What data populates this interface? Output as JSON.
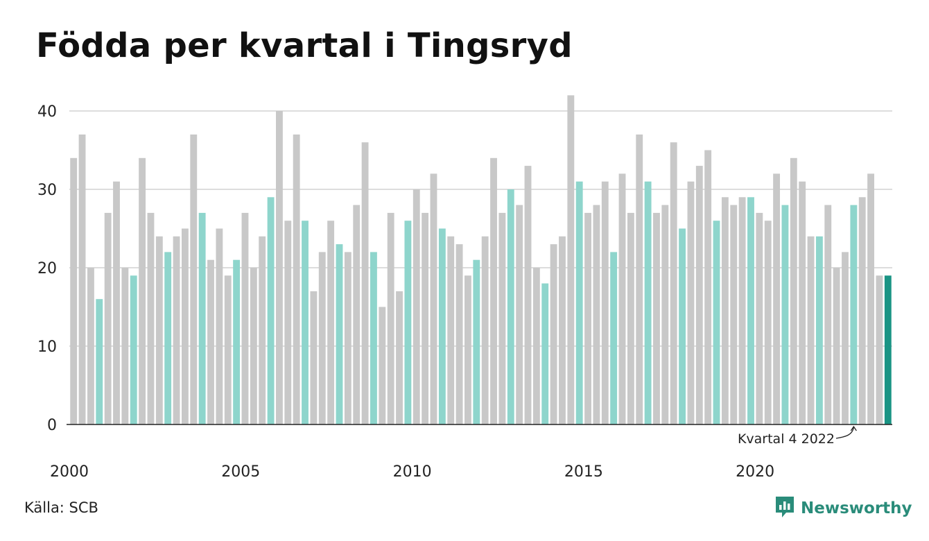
{
  "title": "Födda per kvartal i Tingsryd",
  "source": "Källa: SCB",
  "brand": {
    "name": "Newsworthy",
    "logo_icon": "bar-chart-speech-bubble-icon"
  },
  "colors": {
    "highlight_last": "#1a9484",
    "fourth_quarter": "#8ed5cc",
    "other": "#c8c8c8",
    "grid": "#dddddd",
    "axis": "#222222",
    "brand": "#2a8c7a"
  },
  "annotation": {
    "text": "Kvartal 4 2022",
    "target_index": 91
  },
  "chart_data": {
    "type": "bar",
    "title": "Födda per kvartal i Tingsryd",
    "xlabel": "",
    "ylabel": "",
    "ylim": [
      0,
      43
    ],
    "y_ticks": [
      0,
      10,
      20,
      30,
      40
    ],
    "x_tick_labels": [
      "2000",
      "2005",
      "2010",
      "2015",
      "2020"
    ],
    "grid": true,
    "categories": [
      "2000 Q1",
      "2000 Q2",
      "2000 Q3",
      "2000 Q4",
      "2001 Q1",
      "2001 Q2",
      "2001 Q3",
      "2001 Q4",
      "2002 Q1",
      "2002 Q2",
      "2002 Q3",
      "2002 Q4",
      "2003 Q1",
      "2003 Q2",
      "2003 Q3",
      "2003 Q4",
      "2004 Q1",
      "2004 Q2",
      "2004 Q3",
      "2004 Q4",
      "2005 Q1",
      "2005 Q2",
      "2005 Q3",
      "2005 Q4",
      "2006 Q1",
      "2006 Q2",
      "2006 Q3",
      "2006 Q4",
      "2007 Q1",
      "2007 Q2",
      "2007 Q3",
      "2007 Q4",
      "2008 Q1",
      "2008 Q2",
      "2008 Q3",
      "2008 Q4",
      "2009 Q1",
      "2009 Q2",
      "2009 Q3",
      "2009 Q4",
      "2010 Q1",
      "2010 Q2",
      "2010 Q3",
      "2010 Q4",
      "2011 Q1",
      "2011 Q2",
      "2011 Q3",
      "2011 Q4",
      "2012 Q1",
      "2012 Q2",
      "2012 Q3",
      "2012 Q4",
      "2013 Q1",
      "2013 Q2",
      "2013 Q3",
      "2013 Q4",
      "2014 Q1",
      "2014 Q2",
      "2014 Q3",
      "2014 Q4",
      "2015 Q1",
      "2015 Q2",
      "2015 Q3",
      "2015 Q4",
      "2016 Q1",
      "2016 Q2",
      "2016 Q3",
      "2016 Q4",
      "2017 Q1",
      "2017 Q2",
      "2017 Q3",
      "2017 Q4",
      "2018 Q1",
      "2018 Q2",
      "2018 Q3",
      "2018 Q4",
      "2019 Q1",
      "2019 Q2",
      "2019 Q3",
      "2019 Q4",
      "2020 Q1",
      "2020 Q2",
      "2020 Q3",
      "2020 Q4",
      "2021 Q1",
      "2021 Q2",
      "2021 Q3",
      "2021 Q4",
      "2022 Q1",
      "2022 Q2",
      "2022 Q3",
      "2022 Q4",
      "2023 Q1",
      "2023 Q2",
      "2023 Q3",
      "2023 Q4"
    ],
    "values": [
      34,
      37,
      20,
      16,
      27,
      31,
      20,
      19,
      34,
      27,
      24,
      22,
      24,
      25,
      37,
      27,
      21,
      25,
      19,
      21,
      27,
      20,
      24,
      29,
      40,
      26,
      37,
      26,
      17,
      22,
      26,
      23,
      22,
      28,
      36,
      22,
      15,
      27,
      17,
      26,
      30,
      27,
      32,
      25,
      24,
      23,
      19,
      21,
      24,
      34,
      27,
      30,
      28,
      33,
      20,
      18,
      23,
      24,
      42,
      31,
      27,
      28,
      31,
      22,
      32,
      27,
      37,
      31,
      27,
      28,
      36,
      25,
      31,
      33,
      35,
      26,
      29,
      28,
      29,
      29,
      27,
      26,
      32,
      28,
      34,
      31,
      24,
      24,
      28,
      20,
      22,
      28,
      29,
      32,
      19,
      19
    ]
  }
}
